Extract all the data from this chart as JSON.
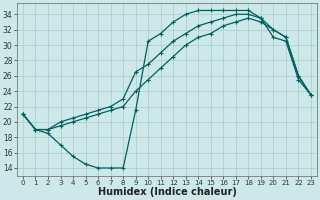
{
  "xlabel": "Humidex (Indice chaleur)",
  "ylabel": "",
  "bg_color": "#cce8e8",
  "grid_color": "#aacccc",
  "line_color": "#006060",
  "xlim": [
    -0.5,
    23.5
  ],
  "ylim": [
    13,
    35.5
  ],
  "yticks": [
    14,
    16,
    18,
    20,
    22,
    24,
    26,
    28,
    30,
    32,
    34
  ],
  "xticks": [
    0,
    1,
    2,
    3,
    4,
    5,
    6,
    7,
    8,
    9,
    10,
    11,
    12,
    13,
    14,
    15,
    16,
    17,
    18,
    19,
    20,
    21,
    22,
    23
  ],
  "series": [
    {
      "x": [
        0,
        1,
        2,
        3,
        4,
        5,
        6,
        7,
        8,
        9,
        10,
        11,
        12,
        13,
        14,
        15,
        16,
        17,
        18,
        19,
        20,
        21,
        22,
        23
      ],
      "y": [
        21.0,
        19.0,
        18.5,
        17.0,
        15.5,
        14.5,
        14.0,
        14.0,
        14.0,
        21.5,
        30.5,
        31.5,
        33.0,
        34.0,
        34.5,
        34.5,
        34.5,
        34.5,
        34.5,
        33.5,
        31.0,
        30.5,
        25.5,
        23.5
      ]
    },
    {
      "x": [
        0,
        1,
        2,
        3,
        4,
        5,
        6,
        7,
        8,
        9,
        10,
        11,
        12,
        13,
        14,
        15,
        16,
        17,
        18,
        19,
        20,
        21,
        22,
        23
      ],
      "y": [
        21.0,
        19.0,
        19.0,
        20.0,
        20.5,
        21.0,
        21.5,
        22.0,
        23.0,
        26.5,
        27.5,
        29.0,
        30.5,
        31.5,
        32.5,
        33.0,
        33.5,
        34.0,
        34.0,
        33.5,
        32.0,
        31.0,
        26.0,
        23.5
      ]
    },
    {
      "x": [
        0,
        1,
        2,
        3,
        4,
        5,
        6,
        7,
        8,
        9,
        10,
        11,
        12,
        13,
        14,
        15,
        16,
        17,
        18,
        19,
        20,
        21,
        22,
        23
      ],
      "y": [
        21.0,
        19.0,
        19.0,
        19.5,
        20.0,
        20.5,
        21.0,
        21.5,
        22.0,
        24.0,
        25.5,
        27.0,
        28.5,
        30.0,
        31.0,
        31.5,
        32.5,
        33.0,
        33.5,
        33.0,
        32.0,
        31.0,
        26.0,
        23.5
      ]
    }
  ],
  "tick_fontsize": 5.5,
  "xlabel_fontsize": 7,
  "lw": 0.9,
  "marker_size": 3.0,
  "marker_ew": 0.8
}
